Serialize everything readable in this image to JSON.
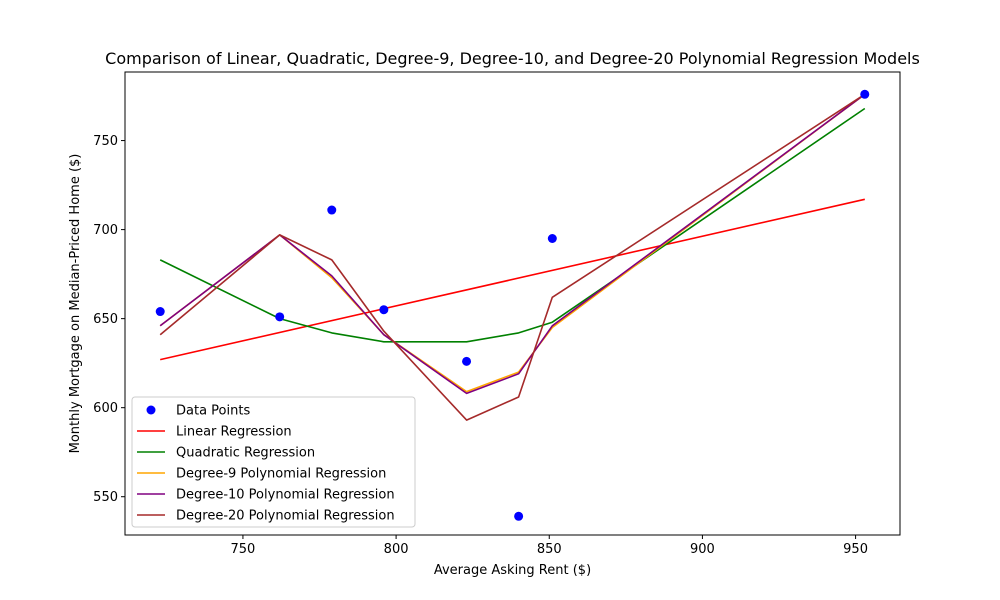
{
  "chart_data": {
    "type": "scatter",
    "title": "Comparison of Linear, Quadratic, Degree-9, Degree-10, and Degree-20 Polynomial Regression Models",
    "xlabel": "Average Asking Rent ($)",
    "ylabel": "Monthly Mortgage on Median-Priced Home ($)",
    "xlim": [
      711.5,
      964.5
    ],
    "ylim": [
      528.5,
      788.5
    ],
    "x_ticks": [
      750,
      800,
      850,
      900,
      950
    ],
    "y_ticks": [
      550,
      600,
      650,
      700,
      750
    ],
    "grid": false,
    "legend_position": "lower-left",
    "points": {
      "name": "Data Points",
      "color": "#0000ff",
      "x": [
        723,
        762,
        779,
        796,
        823,
        840,
        851,
        953
      ],
      "y": [
        654,
        651,
        711,
        655,
        626,
        539,
        695,
        776
      ]
    },
    "series": [
      {
        "name": "Linear Regression",
        "color": "#ff0000",
        "x": [
          723,
          953
        ],
        "y": [
          627,
          717
        ]
      },
      {
        "name": "Quadratic Regression",
        "color": "#008000",
        "x": [
          723,
          762,
          779,
          796,
          823,
          840,
          851,
          953
        ],
        "y": [
          683,
          650,
          642,
          637,
          637,
          642,
          648,
          768
        ]
      },
      {
        "name": "Degree-9 Polynomial Regression",
        "color": "#ffa500",
        "x": [
          723,
          762,
          779,
          796,
          823,
          840,
          851,
          953
        ],
        "y": [
          646,
          697,
          673,
          641,
          609,
          620,
          645,
          776
        ]
      },
      {
        "name": "Degree-10 Polynomial Regression",
        "color": "#800080",
        "x": [
          723,
          762,
          779,
          796,
          823,
          840,
          851,
          953
        ],
        "y": [
          646,
          697,
          674,
          641,
          608,
          619,
          646,
          776
        ]
      },
      {
        "name": "Degree-20 Polynomial Regression",
        "color": "#a52a2a",
        "x": [
          723,
          762,
          779,
          796,
          823,
          840,
          851,
          953
        ],
        "y": [
          641,
          697,
          683,
          643,
          593,
          606,
          662,
          776
        ]
      }
    ]
  }
}
